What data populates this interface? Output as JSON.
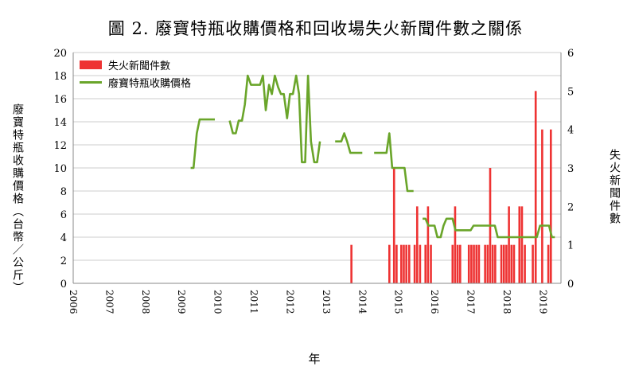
{
  "title": "圖 2.  廢寶特瓶收購價格和回收場失火新聞件數之關係",
  "colors": {
    "bar": "#ee3333",
    "line": "#6aa52a",
    "grid": "#cccccc"
  },
  "chart_data": {
    "type": "bar+line",
    "title": "圖 2.  廢寶特瓶收購價格和回收場失火新聞件數之關係",
    "xlabel": "年",
    "ylabel_left": "廢寶特瓶收購價格（台幣／公斤）",
    "ylabel_right": "失火新聞件數",
    "ylim_left": [
      0,
      20
    ],
    "ylim_right": [
      0,
      6
    ],
    "yticks_left": [
      "0",
      "2",
      "4",
      "6",
      "8",
      "10",
      "12",
      "14",
      "16",
      "18",
      "20"
    ],
    "yticks_right": [
      "0",
      "1",
      "2",
      "3",
      "4",
      "5",
      "6"
    ],
    "xticks": [
      "2006",
      "2007",
      "2008",
      "2009",
      "2010",
      "2011",
      "2012",
      "2013",
      "2014",
      "2015",
      "2016",
      "2017",
      "2018",
      "2019"
    ],
    "xlim": [
      2006,
      2019.5
    ],
    "legend": {
      "position": "top-left"
    },
    "series": [
      {
        "name": "失火新聞件數",
        "type": "bar",
        "axis": "right",
        "points": [
          [
            2013.7,
            1
          ],
          [
            2014.75,
            1
          ],
          [
            2014.88,
            3
          ],
          [
            2014.95,
            1
          ],
          [
            2015.08,
            1
          ],
          [
            2015.15,
            1
          ],
          [
            2015.22,
            1
          ],
          [
            2015.3,
            1
          ],
          [
            2015.45,
            1
          ],
          [
            2015.52,
            2
          ],
          [
            2015.6,
            1
          ],
          [
            2015.75,
            1
          ],
          [
            2015.82,
            2
          ],
          [
            2015.9,
            1
          ],
          [
            2016.5,
            1
          ],
          [
            2016.57,
            2
          ],
          [
            2016.64,
            1
          ],
          [
            2016.71,
            1
          ],
          [
            2016.95,
            1
          ],
          [
            2017.02,
            1
          ],
          [
            2017.09,
            1
          ],
          [
            2017.16,
            1
          ],
          [
            2017.23,
            1
          ],
          [
            2017.4,
            1
          ],
          [
            2017.47,
            1
          ],
          [
            2017.54,
            3
          ],
          [
            2017.61,
            1
          ],
          [
            2017.68,
            1
          ],
          [
            2017.85,
            1
          ],
          [
            2017.92,
            1
          ],
          [
            2017.99,
            1
          ],
          [
            2018.06,
            2
          ],
          [
            2018.13,
            1
          ],
          [
            2018.2,
            1
          ],
          [
            2018.35,
            2
          ],
          [
            2018.42,
            2
          ],
          [
            2018.5,
            1
          ],
          [
            2018.72,
            1
          ],
          [
            2018.8,
            5
          ],
          [
            2018.98,
            4
          ],
          [
            2019.15,
            1
          ],
          [
            2019.22,
            4
          ]
        ]
      },
      {
        "name": "廢寶特瓶收購價格",
        "type": "line",
        "axis": "left",
        "segments": [
          [
            [
              2009.25,
              10
            ],
            [
              2009.33,
              10
            ],
            [
              2009.42,
              13
            ],
            [
              2009.5,
              14.2
            ],
            [
              2009.75,
              14.2
            ],
            [
              2009.92,
              14.2
            ]
          ],
          [
            [
              2010.33,
              14.1
            ],
            [
              2010.42,
              13
            ],
            [
              2010.5,
              13
            ],
            [
              2010.58,
              14.1
            ],
            [
              2010.67,
              14.1
            ],
            [
              2010.75,
              15.5
            ],
            [
              2010.83,
              18
            ],
            [
              2010.92,
              17.2
            ],
            [
              2011.17,
              17.2
            ],
            [
              2011.25,
              18
            ],
            [
              2011.33,
              15
            ],
            [
              2011.42,
              17.2
            ],
            [
              2011.5,
              16.4
            ],
            [
              2011.58,
              18
            ],
            [
              2011.67,
              17
            ],
            [
              2011.75,
              16.4
            ],
            [
              2011.83,
              16.4
            ],
            [
              2011.92,
              14.3
            ],
            [
              2012.0,
              16.4
            ],
            [
              2012.08,
              16.4
            ],
            [
              2012.17,
              18
            ],
            [
              2012.25,
              16.4
            ],
            [
              2012.33,
              10.5
            ],
            [
              2012.42,
              10.5
            ],
            [
              2012.5,
              18
            ],
            [
              2012.58,
              12.3
            ],
            [
              2012.67,
              10.5
            ],
            [
              2012.75,
              10.5
            ],
            [
              2012.83,
              12.3
            ]
          ],
          [
            [
              2013.25,
              12.3
            ],
            [
              2013.42,
              12.3
            ],
            [
              2013.5,
              13
            ],
            [
              2013.58,
              12.3
            ],
            [
              2013.67,
              11.3
            ],
            [
              2013.75,
              11.3
            ],
            [
              2013.83,
              11.3
            ],
            [
              2014.0,
              11.3
            ]
          ],
          [
            [
              2014.33,
              11.3
            ],
            [
              2014.5,
              11.3
            ],
            [
              2014.67,
              11.3
            ],
            [
              2014.75,
              13
            ],
            [
              2014.83,
              10
            ],
            [
              2015.0,
              10
            ],
            [
              2015.17,
              10
            ],
            [
              2015.25,
              8
            ],
            [
              2015.42,
              8
            ]
          ],
          [
            [
              2015.67,
              5.6
            ],
            [
              2015.75,
              5.6
            ],
            [
              2015.83,
              5
            ],
            [
              2016.0,
              5
            ],
            [
              2016.08,
              4
            ],
            [
              2016.17,
              4
            ],
            [
              2016.25,
              5
            ],
            [
              2016.33,
              5.6
            ],
            [
              2016.5,
              5.6
            ],
            [
              2016.58,
              4.6
            ],
            [
              2016.67,
              4.6
            ],
            [
              2016.92,
              4.6
            ],
            [
              2017.0,
              4.6
            ],
            [
              2017.08,
              5
            ],
            [
              2017.5,
              5
            ],
            [
              2017.58,
              5
            ],
            [
              2017.67,
              5
            ],
            [
              2017.75,
              4
            ],
            [
              2018.0,
              4
            ],
            [
              2018.33,
              4
            ],
            [
              2018.58,
              4
            ],
            [
              2018.83,
              4
            ],
            [
              2018.92,
              5
            ],
            [
              2019.17,
              5
            ],
            [
              2019.25,
              4
            ],
            [
              2019.33,
              4
            ]
          ]
        ]
      }
    ]
  }
}
